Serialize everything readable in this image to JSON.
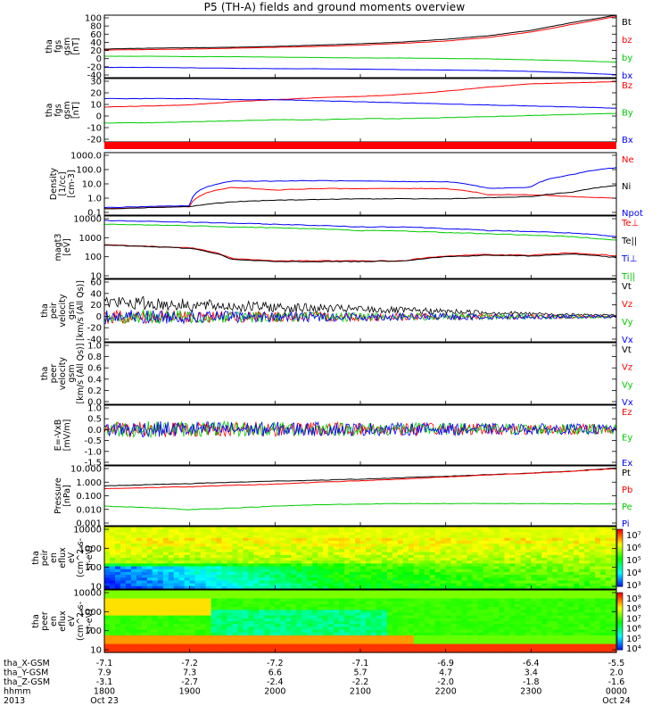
{
  "title": "P5 (TH-A) fields and ground moments overview",
  "colors": {
    "black": "#000000",
    "red": "#ff0000",
    "green": "#00cc00",
    "blue": "#0000ff"
  },
  "chart_data": [
    {
      "type": "line",
      "id": "fgs",
      "ylabel": [
        "tha",
        "fgs",
        "gsm",
        "[nT]"
      ],
      "yticks": [
        "100",
        "80",
        "60",
        "40",
        "20",
        "0",
        "-20",
        "-40"
      ],
      "ylim": [
        -40,
        100
      ],
      "series": [
        {
          "name": "Bt",
          "color": "black",
          "values": [
            24,
            26,
            27,
            28,
            30,
            33,
            36,
            40,
            46,
            54,
            66,
            84,
            100
          ]
        },
        {
          "name": "bz",
          "color": "red",
          "values": [
            22,
            23,
            24,
            26,
            28,
            30,
            33,
            37,
            42,
            50,
            62,
            80,
            97
          ]
        },
        {
          "name": "by",
          "color": "green",
          "values": [
            8,
            8,
            7,
            7,
            6,
            5,
            4,
            4,
            3,
            2,
            0,
            -2,
            -5
          ]
        },
        {
          "name": "bx",
          "color": "blue",
          "values": [
            -17,
            -17,
            -18,
            -19,
            -20,
            -20,
            -21,
            -22,
            -23,
            -24,
            -26,
            -29,
            -33
          ]
        }
      ]
    },
    {
      "type": "line",
      "id": "gsm",
      "ylabel": [
        "tha",
        "fgs",
        "gsm",
        "[nT]"
      ],
      "yticks": [
        "30",
        "20",
        "10",
        "0",
        "-10",
        "-20"
      ],
      "ylim": [
        -30,
        30
      ],
      "series": [
        {
          "name": "Bz",
          "color": "red",
          "values": [
            3,
            4,
            5,
            8,
            10,
            12,
            13,
            15,
            18,
            22,
            25,
            26,
            27
          ]
        },
        {
          "name": "By",
          "color": "green",
          "values": [
            -12,
            -12,
            -11,
            -10,
            -9,
            -9,
            -8,
            -8,
            -7,
            -6,
            -5,
            -4,
            -3
          ]
        },
        {
          "name": "Bx",
          "color": "blue",
          "values": [
            11,
            11,
            11,
            10,
            10,
            9,
            8,
            7,
            6,
            5,
            4,
            3,
            2
          ]
        }
      ]
    },
    {
      "type": "line",
      "id": "density",
      "log": true,
      "ylabel": [
        "Density",
        "[1/cc]",
        "[cm-3]"
      ],
      "yticks": [
        "1000.0",
        "100.0",
        "10.0",
        "1.0",
        "0.1"
      ],
      "ylim": [
        0.1,
        1000
      ],
      "series": [
        {
          "name": "Ne",
          "color": "red",
          "values": [
            0.25,
            0.3,
            0.35,
            6,
            4,
            5,
            5,
            5,
            5,
            2,
            2,
            1.5,
            1.2
          ]
        },
        {
          "name": "Ni",
          "color": "black",
          "values": [
            0.25,
            0.3,
            0.35,
            0.7,
            0.9,
            1.0,
            1.1,
            1.1,
            1.1,
            1.3,
            1.5,
            3,
            8
          ]
        },
        {
          "name": "Npot",
          "color": "blue",
          "values": [
            0.3,
            0.35,
            0.4,
            15,
            15,
            16,
            15,
            14,
            14,
            5,
            6,
            40,
            110
          ]
        }
      ]
    },
    {
      "type": "line",
      "id": "temp",
      "log": true,
      "ylabel": [
        "magt3",
        "[eV]"
      ],
      "yticks": [
        "10000",
        "1000",
        "100",
        "10"
      ],
      "ylim": [
        10,
        10000
      ],
      "series": [
        {
          "name": "Te⊥",
          "color": "red",
          "values": [
            420,
            350,
            300,
            90,
            70,
            70,
            70,
            70,
            120,
            140,
            130,
            170,
            120
          ]
        },
        {
          "name": "Te||",
          "color": "black",
          "values": [
            400,
            340,
            280,
            80,
            65,
            65,
            65,
            70,
            110,
            130,
            120,
            150,
            100
          ]
        },
        {
          "name": "Ti⊥",
          "color": "blue",
          "values": [
            6000,
            5500,
            5000,
            4500,
            4000,
            3500,
            3000,
            3000,
            2500,
            2000,
            1800,
            1500,
            1000
          ]
        },
        {
          "name": "Ti||",
          "color": "green",
          "values": [
            4000,
            3700,
            3400,
            3000,
            2700,
            2400,
            2000,
            1900,
            1600,
            1400,
            1200,
            1000,
            700
          ]
        }
      ]
    },
    {
      "type": "line",
      "id": "peir_vel",
      "ylabel": [
        "tha",
        "peir",
        "velocity",
        "gsm",
        "[km/s (All Qs)]"
      ],
      "yticks": [
        "60",
        "40",
        "20",
        "0",
        "-20",
        "-40"
      ],
      "ylim": [
        -40,
        60
      ],
      "series": [
        {
          "name": "Vt",
          "color": "black",
          "values": [
            28,
            25,
            22,
            20,
            18,
            16,
            14,
            12,
            10,
            8,
            6,
            4,
            3
          ]
        },
        {
          "name": "Vz",
          "color": "red",
          "values": [
            0,
            0,
            0,
            0,
            0,
            0,
            0,
            0,
            0,
            0,
            0,
            0,
            0
          ]
        },
        {
          "name": "Vy",
          "color": "green",
          "values": [
            0,
            0,
            0,
            0,
            0,
            0,
            0,
            0,
            0,
            0,
            0,
            0,
            0
          ]
        },
        {
          "name": "Vx",
          "color": "blue",
          "values": [
            0,
            0,
            0,
            0,
            0,
            0,
            0,
            0,
            0,
            0,
            0,
            0,
            0
          ]
        }
      ]
    },
    {
      "type": "line",
      "id": "peer_vel",
      "ylabel": [
        "tha",
        "peer",
        "velocity",
        "gsm",
        "[km/s (All Qs)]"
      ],
      "yticks": [
        "1.0",
        "0.8",
        "0.6",
        "0.4",
        "0.2",
        "0.0"
      ],
      "ylim": [
        0,
        1
      ],
      "series": [
        {
          "name": "Vt",
          "color": "black",
          "values": []
        },
        {
          "name": "Vz",
          "color": "red",
          "values": []
        },
        {
          "name": "Vy",
          "color": "green",
          "values": []
        },
        {
          "name": "Vx",
          "color": "blue",
          "values": []
        }
      ]
    },
    {
      "type": "line",
      "id": "efield",
      "ylabel": [
        "E=-VxB",
        "[mV/m]"
      ],
      "yticks": [
        "1.0",
        "0.5",
        "0.0",
        "-0.5",
        "-1.0",
        "-1.5"
      ],
      "ylim": [
        -1.5,
        1.0
      ],
      "series": [
        {
          "name": "Ez",
          "color": "red",
          "values": [
            0,
            0,
            0,
            0,
            0,
            0,
            0,
            0,
            0,
            0,
            0,
            0,
            0
          ]
        },
        {
          "name": "Ey",
          "color": "green",
          "values": [
            0,
            0,
            0,
            0,
            0,
            0,
            0,
            0,
            0,
            0,
            0,
            0,
            0
          ]
        },
        {
          "name": "Ex",
          "color": "blue",
          "values": [
            0,
            0,
            0,
            0,
            0,
            0,
            0,
            0,
            0,
            0,
            0,
            0,
            0
          ]
        }
      ]
    },
    {
      "type": "line",
      "id": "pressure",
      "log": true,
      "ylabel": [
        "Pressure",
        "[nPa]"
      ],
      "yticks": [
        "10.000",
        "1.000",
        "0.100",
        "0.010",
        "0.001"
      ],
      "ylim": [
        0.001,
        10
      ],
      "series": [
        {
          "name": "Pt",
          "color": "black",
          "values": [
            0.45,
            0.55,
            0.65,
            0.8,
            0.95,
            1.1,
            1.3,
            1.6,
            2.0,
            2.6,
            3.3,
            4.5,
            7
          ]
        },
        {
          "name": "Pb",
          "color": "red",
          "values": [
            0.3,
            0.35,
            0.4,
            0.5,
            0.6,
            0.8,
            1.0,
            1.3,
            1.8,
            2.4,
            3.2,
            4.4,
            6.5
          ]
        },
        {
          "name": "Pe",
          "color": "green",
          "values": [
            0.02,
            0.016,
            0.012,
            0.015,
            0.02,
            0.025,
            0.028,
            0.03,
            0.03,
            0.03,
            0.03,
            0.029,
            0.028
          ]
        },
        {
          "name": "Pi",
          "color": "blue",
          "values": []
        }
      ]
    },
    {
      "type": "heatmap",
      "id": "peir_spec",
      "log": true,
      "ylabel": [
        "tha",
        "peir",
        "en",
        "eflux",
        "eV",
        "(cm^2-s-",
        "sr-eV)"
      ],
      "yticks": [
        "10000",
        "1000",
        "100",
        "10"
      ],
      "ylim": [
        10,
        25000
      ],
      "colorbar": {
        "ticks": [
          "10⁷",
          "10⁶",
          "10⁵",
          "10⁴",
          "10³"
        ]
      }
    },
    {
      "type": "heatmap",
      "id": "peer_spec",
      "log": true,
      "ylabel": [
        "tha",
        "peer",
        "en",
        "eflux",
        "eV",
        "(cm^2-s-",
        "sr-eV)"
      ],
      "yticks": [
        "10000",
        "1000",
        "100",
        "10"
      ],
      "ylim": [
        10,
        25000
      ],
      "colorbar": {
        "ticks": [
          "10⁹",
          "10⁸",
          "10⁷",
          "10⁶",
          "10⁵",
          "10⁴"
        ]
      }
    }
  ],
  "xaxis": {
    "row_labels": [
      "tha_X-GSM",
      "tha_Y-GSM",
      "tha_Z-GSM",
      "hhmm",
      "2013"
    ],
    "columns": [
      {
        "vals": [
          "-7.1",
          "7.9",
          "-3.1",
          "1800",
          "Oct 23"
        ]
      },
      {
        "vals": [
          "-7.2",
          "7.3",
          "-2.7",
          "1900",
          ""
        ]
      },
      {
        "vals": [
          "-7.2",
          "6.6",
          "-2.4",
          "2000",
          ""
        ]
      },
      {
        "vals": [
          "-7.1",
          "5.7",
          "-2.2",
          "2100",
          ""
        ]
      },
      {
        "vals": [
          "-6.9",
          "4.7",
          "-2.0",
          "2200",
          ""
        ]
      },
      {
        "vals": [
          "-6.4",
          "3.4",
          "-1.8",
          "2300",
          ""
        ]
      },
      {
        "vals": [
          "-5.5",
          "2.0",
          "-1.6",
          "0000",
          "Oct 24"
        ]
      }
    ]
  }
}
